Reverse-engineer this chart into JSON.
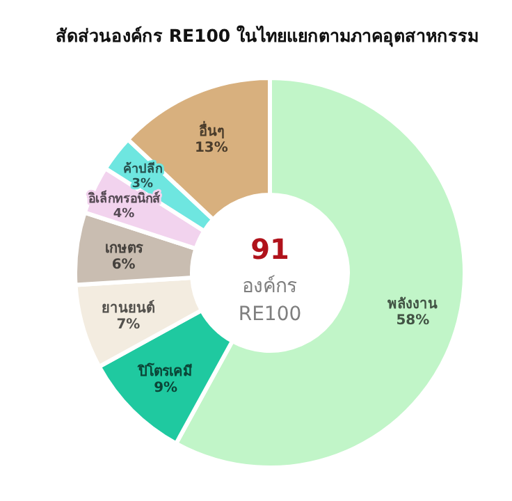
{
  "chart_data": {
    "type": "donut",
    "title": "สัดส่วนองค์กร RE100 ในไทยแยกตามภาคอุตสาหกรรม",
    "categories": [
      "พลังงาน",
      "ปิโตรเคมี",
      "ยานยนต์",
      "เกษตร",
      "อิเล็กทรอนิกส์",
      "ค้าปลีก",
      "อื่นๆ"
    ],
    "values": [
      58,
      9,
      7,
      6,
      4,
      3,
      13
    ],
    "colors": [
      "#c1f5c8",
      "#1fc9a0",
      "#f3ece0",
      "#c9bdb1",
      "#f2d3ee",
      "#6ee6e0",
      "#d8b07e"
    ],
    "value_labels": [
      "58%",
      "9%",
      "7%",
      "6%",
      "4%",
      "3%",
      "13%"
    ],
    "annotations": [
      "91",
      "องค์กร",
      "RE100"
    ]
  }
}
